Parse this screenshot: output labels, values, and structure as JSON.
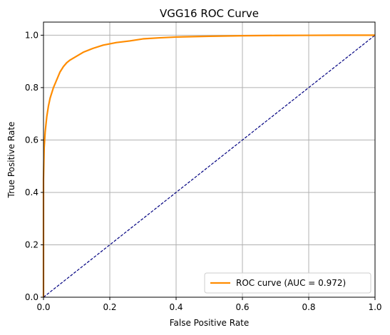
{
  "chart_data": {
    "type": "line",
    "title": "VGG16 ROC Curve",
    "xlabel": "False Positive Rate",
    "ylabel": "True Positive Rate",
    "xlim": [
      0.0,
      1.0
    ],
    "ylim": [
      0.0,
      1.05
    ],
    "xticks": [
      "0.0",
      "0.2",
      "0.4",
      "0.6",
      "0.8",
      "1.0"
    ],
    "yticks": [
      "0.0",
      "0.2",
      "0.4",
      "0.6",
      "0.8",
      "1.0"
    ],
    "grid": true,
    "legend_position": "lower-right",
    "series": [
      {
        "name": "ROC curve (AUC = 0.972)",
        "color": "#ff8c00",
        "style": "solid",
        "x": [
          0.0,
          0.0,
          0.002,
          0.005,
          0.01,
          0.015,
          0.02,
          0.03,
          0.04,
          0.05,
          0.06,
          0.07,
          0.08,
          0.1,
          0.12,
          0.15,
          0.18,
          0.22,
          0.26,
          0.3,
          0.35,
          0.4,
          0.5,
          0.6,
          0.7,
          0.8,
          0.9,
          1.0
        ],
        "y": [
          0.0,
          0.45,
          0.57,
          0.63,
          0.69,
          0.73,
          0.76,
          0.8,
          0.83,
          0.86,
          0.88,
          0.895,
          0.905,
          0.92,
          0.935,
          0.95,
          0.962,
          0.972,
          0.978,
          0.986,
          0.99,
          0.993,
          0.996,
          0.998,
          0.999,
          0.9995,
          1.0,
          1.0
        ]
      },
      {
        "name": "",
        "color": "#000080",
        "style": "dashed",
        "x": [
          0.0,
          1.0
        ],
        "y": [
          0.0,
          1.0
        ]
      }
    ]
  }
}
